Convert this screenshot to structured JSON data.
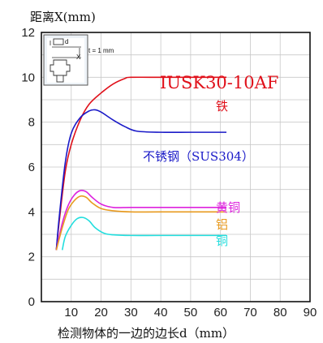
{
  "chart_data": {
    "type": "line",
    "ylabel": "距离X(mm)",
    "xlabel": "检测物体的一边的边长d（mm）",
    "model_label": "IUSK30-10AF",
    "xlim": [
      0,
      90
    ],
    "ylim": [
      0,
      12
    ],
    "xticks": [
      10,
      20,
      30,
      40,
      50,
      60,
      70,
      80,
      90
    ],
    "yticks": [
      0,
      2,
      4,
      6,
      8,
      10,
      12
    ],
    "grid": true,
    "inset": {
      "d_label": "d",
      "x_label": "X",
      "t_label": "t = 1 mm"
    },
    "series": [
      {
        "name": "铁",
        "color": "#e0101a",
        "x": [
          5,
          6,
          8,
          10,
          13,
          16,
          20,
          24,
          28,
          30,
          40,
          50,
          62
        ],
        "y": [
          2.3,
          3.6,
          5.8,
          7.0,
          8.1,
          8.8,
          9.3,
          9.7,
          9.95,
          10.0,
          10.0,
          10.0,
          10.0
        ]
      },
      {
        "name": "不锈钢（SUS304）",
        "color": "#1a1ac8",
        "x": [
          5,
          6,
          8,
          10,
          13,
          16,
          18,
          20,
          24,
          28,
          32,
          40,
          50,
          62
        ],
        "y": [
          2.3,
          3.8,
          6.2,
          7.5,
          8.2,
          8.5,
          8.55,
          8.45,
          8.1,
          7.8,
          7.6,
          7.55,
          7.55,
          7.55
        ]
      },
      {
        "name": "黄铜",
        "color": "#dd22dd",
        "x": [
          5,
          7,
          9,
          11,
          13,
          15,
          17,
          20,
          24,
          30,
          40,
          62
        ],
        "y": [
          2.3,
          3.5,
          4.3,
          4.75,
          4.95,
          4.9,
          4.65,
          4.35,
          4.2,
          4.2,
          4.2,
          4.2
        ]
      },
      {
        "name": "铝",
        "color": "#e89a1e",
        "x": [
          5,
          7,
          9,
          11,
          13,
          15,
          17,
          20,
          24,
          30,
          40,
          62
        ],
        "y": [
          2.3,
          3.3,
          4.1,
          4.5,
          4.7,
          4.65,
          4.4,
          4.15,
          4.05,
          4.0,
          4.0,
          4.0
        ]
      },
      {
        "name": "铜",
        "color": "#22dede",
        "x": [
          7,
          8,
          10,
          12,
          14,
          16,
          18,
          21,
          24,
          30,
          40,
          62
        ],
        "y": [
          2.3,
          2.9,
          3.4,
          3.7,
          3.75,
          3.6,
          3.3,
          3.05,
          2.98,
          2.95,
          2.95,
          2.95
        ]
      }
    ]
  }
}
